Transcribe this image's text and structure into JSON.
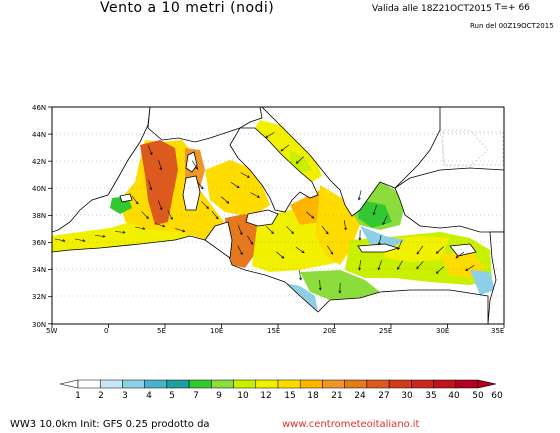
{
  "header": {
    "title": "Vento a 10 metri (nodi)",
    "valid": "Valida alle 18Z21OCT2015",
    "tplus": "T=+ 66",
    "run": "Run del 00Z19OCT2015"
  },
  "map": {
    "lat_labels": [
      "46N",
      "44N",
      "42N",
      "40N",
      "38N",
      "36N",
      "34N",
      "32N",
      "30N"
    ],
    "lon_labels": [
      "5W",
      "0",
      "5E",
      "10E",
      "15E",
      "20E",
      "25E",
      "30E",
      "35E"
    ]
  },
  "colorbar": {
    "labels": [
      "1",
      "2",
      "3",
      "4",
      "5",
      "7",
      "9",
      "10",
      "12",
      "15",
      "18",
      "21",
      "24",
      "27",
      "30",
      "35",
      "40",
      "50",
      "60"
    ],
    "colors": [
      "#ffffff",
      "#c8e6f5",
      "#8ccfe6",
      "#46b4c8",
      "#1ea0a0",
      "#32c832",
      "#8cdc3c",
      "#c8f000",
      "#f0f000",
      "#ffdc00",
      "#ffb400",
      "#f09628",
      "#e6781e",
      "#dc5a1e",
      "#d23c1e",
      "#c8281e",
      "#be141e",
      "#b4001e"
    ]
  },
  "footer": {
    "left": "WW3 10.0km Init: GFS 0.25 prodotto da",
    "link": "www.centrometeoitaliano.it"
  }
}
